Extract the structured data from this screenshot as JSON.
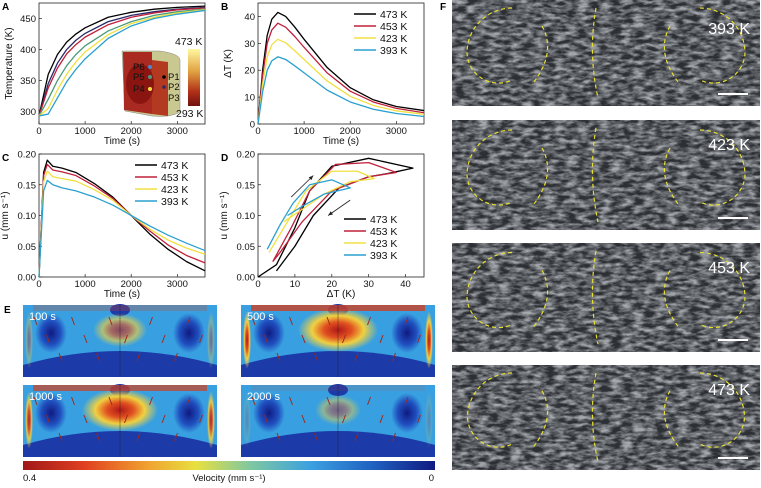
{
  "panels": {
    "A": "A",
    "B": "B",
    "C": "C",
    "D": "D",
    "E": "E",
    "F": "F"
  },
  "chart_data": [
    {
      "id": "A",
      "type": "line",
      "xlabel": "Time (s)",
      "ylabel": "Temperature (K)",
      "xlim": [
        0,
        3600
      ],
      "ylim": [
        280,
        475
      ],
      "xticks": [
        0,
        1000,
        2000,
        3000
      ],
      "yticks": [
        300,
        350,
        400,
        450
      ],
      "x": [
        0,
        200,
        400,
        600,
        800,
        1000,
        1500,
        2000,
        2500,
        3000,
        3600
      ],
      "series": [
        {
          "name": "P1",
          "color": "#000000",
          "values": [
            293,
            360,
            392,
            412,
            425,
            435,
            452,
            460,
            465,
            468,
            470
          ]
        },
        {
          "name": "P2",
          "color": "#2a2a6a",
          "values": [
            293,
            345,
            378,
            400,
            415,
            426,
            445,
            455,
            461,
            465,
            468
          ]
        },
        {
          "name": "P3",
          "color": "#c0203a",
          "values": [
            293,
            338,
            370,
            393,
            408,
            420,
            440,
            452,
            459,
            464,
            467
          ]
        },
        {
          "name": "P4",
          "color": "#4a9a7a",
          "values": [
            293,
            320,
            350,
            374,
            392,
            406,
            430,
            445,
            455,
            461,
            465
          ]
        },
        {
          "name": "P5",
          "color": "#f0e040",
          "values": [
            293,
            305,
            335,
            360,
            380,
            396,
            424,
            442,
            452,
            459,
            464
          ]
        },
        {
          "name": "P6",
          "color": "#2aa0d0",
          "values": [
            293,
            296,
            322,
            348,
            368,
            385,
            418,
            438,
            450,
            457,
            463
          ]
        }
      ],
      "inset": {
        "points": [
          "P6",
          "P5",
          "P4",
          "P1",
          "P2",
          "P3"
        ],
        "colorbar_max": "473 K",
        "colorbar_min": "293 K"
      }
    },
    {
      "id": "B",
      "type": "line",
      "xlabel": "Time (s)",
      "ylabel": "ΔT (K)",
      "xlim": [
        0,
        3600
      ],
      "ylim": [
        0,
        45
      ],
      "xticks": [
        0,
        1000,
        2000,
        3000
      ],
      "yticks": [
        0,
        10,
        20,
        30,
        40
      ],
      "x": [
        0,
        100,
        200,
        300,
        430,
        600,
        800,
        1000,
        1500,
        2000,
        2500,
        3000,
        3600
      ],
      "series": [
        {
          "name": "473 K",
          "color": "#000000",
          "values": [
            0,
            20,
            33,
            39,
            41.5,
            40,
            36,
            31.5,
            21,
            13.5,
            9,
            6.5,
            5
          ]
        },
        {
          "name": "453 K",
          "color": "#c0203a",
          "values": [
            0,
            18,
            30,
            35,
            37.5,
            36,
            32.5,
            28.5,
            19,
            12.2,
            8.2,
            5.8,
            4.2
          ]
        },
        {
          "name": "423 K",
          "color": "#f0e040",
          "values": [
            0,
            15,
            25,
            29.5,
            31.5,
            30.2,
            27.2,
            24,
            16,
            10.3,
            6.9,
            4.9,
            3.6
          ]
        },
        {
          "name": "393 K",
          "color": "#2aa0d0",
          "values": [
            0,
            12,
            20,
            23.5,
            25,
            24,
            21.6,
            19,
            12.6,
            8.2,
            5.5,
            3.9,
            2.8
          ]
        }
      ],
      "legend": "top-right"
    },
    {
      "id": "C",
      "type": "line",
      "xlabel": "Time (s)",
      "ylabel": "u (mm s⁻¹)",
      "xlim": [
        0,
        3600
      ],
      "ylim": [
        0,
        0.2
      ],
      "xticks": [
        0,
        1000,
        2000,
        3000
      ],
      "yticks": [
        0,
        0.05,
        0.1,
        0.15,
        0.2
      ],
      "ytick_labels": [
        "0.00",
        "0.05",
        "0.10",
        "0.15",
        "0.20"
      ],
      "x": [
        0,
        100,
        180,
        300,
        500,
        800,
        1200,
        1600,
        2000,
        2400,
        2800,
        3200,
        3600
      ],
      "series": [
        {
          "name": "473 K",
          "color": "#000000",
          "values": [
            0,
            0.17,
            0.19,
            0.18,
            0.177,
            0.17,
            0.152,
            0.13,
            0.1,
            0.07,
            0.045,
            0.025,
            0.01
          ]
        },
        {
          "name": "453 K",
          "color": "#c0203a",
          "values": [
            0,
            0.165,
            0.183,
            0.174,
            0.171,
            0.165,
            0.148,
            0.128,
            0.1,
            0.075,
            0.052,
            0.035,
            0.023
          ]
        },
        {
          "name": "423 K",
          "color": "#f0e040",
          "values": [
            0,
            0.155,
            0.172,
            0.163,
            0.16,
            0.156,
            0.142,
            0.125,
            0.1,
            0.078,
            0.06,
            0.047,
            0.037
          ]
        },
        {
          "name": "393 K",
          "color": "#2aa0d0",
          "values": [
            0,
            0.14,
            0.157,
            0.15,
            0.145,
            0.14,
            0.13,
            0.117,
            0.1,
            0.083,
            0.068,
            0.055,
            0.043
          ]
        }
      ],
      "legend": "top-right"
    },
    {
      "id": "D",
      "type": "line",
      "xlabel": "ΔT (K)",
      "ylabel": "u (mm s⁻¹)",
      "xlim": [
        0,
        45
      ],
      "ylim": [
        0,
        0.2
      ],
      "xticks": [
        0,
        10,
        20,
        30,
        40
      ],
      "yticks": [
        0,
        0.05,
        0.1,
        0.15,
        0.2
      ],
      "ytick_labels": [
        "0.00",
        "0.05",
        "0.10",
        "0.15",
        "0.20"
      ],
      "series": [
        {
          "name": "473 K",
          "color": "#000000",
          "points": [
            [
              0,
              0
            ],
            [
              5,
              0.02
            ],
            [
              10,
              0.08
            ],
            [
              14,
              0.14
            ],
            [
              20,
              0.18
            ],
            [
              30,
              0.193
            ],
            [
              42,
              0.177
            ],
            [
              35,
              0.168
            ],
            [
              30,
              0.163
            ],
            [
              22,
              0.145
            ],
            [
              15,
              0.1
            ],
            [
              10,
              0.05
            ],
            [
              5,
              0.01
            ]
          ]
        },
        {
          "name": "453 K",
          "color": "#c0203a",
          "points": [
            [
              4,
              0.025
            ],
            [
              9,
              0.08
            ],
            [
              14,
              0.14
            ],
            [
              21,
              0.183
            ],
            [
              30,
              0.186
            ],
            [
              37.5,
              0.17
            ],
            [
              30,
              0.163
            ],
            [
              20,
              0.14
            ],
            [
              12,
              0.09
            ],
            [
              6,
              0.04
            ],
            [
              4,
              0.025
            ]
          ]
        },
        {
          "name": "423 K",
          "color": "#f0e040",
          "points": [
            [
              3,
              0.04
            ],
            [
              8,
              0.09
            ],
            [
              13,
              0.14
            ],
            [
              20,
              0.172
            ],
            [
              27,
              0.172
            ],
            [
              31.5,
              0.16
            ],
            [
              25,
              0.155
            ],
            [
              18,
              0.135
            ],
            [
              12,
              0.11
            ],
            [
              7,
              0.09
            ]
          ]
        },
        {
          "name": "393 K",
          "color": "#2aa0d0",
          "points": [
            [
              2.5,
              0.045
            ],
            [
              6,
              0.085
            ],
            [
              9.5,
              0.12
            ],
            [
              14,
              0.15
            ],
            [
              20,
              0.158
            ],
            [
              25,
              0.145
            ],
            [
              18,
              0.135
            ],
            [
              12,
              0.115
            ],
            [
              8,
              0.1
            ]
          ]
        }
      ],
      "arrows": [
        {
          "from": [
            9,
            0.13
          ],
          "to": [
            15,
            0.165
          ]
        },
        {
          "from": [
            25,
            0.125
          ],
          "to": [
            19,
            0.1
          ]
        }
      ],
      "legend": "bottom-right"
    }
  ],
  "E": {
    "snapshots": [
      {
        "label": "100 s",
        "level": 0.35
      },
      {
        "label": "500 s",
        "level": 1.0
      },
      {
        "label": "1000 s",
        "level": 0.9
      },
      {
        "label": "2000 s",
        "level": 0.15
      }
    ],
    "colorbar": {
      "label": "Velocity (mm s⁻¹)",
      "max": "0.4",
      "min": "0"
    }
  },
  "F": {
    "images": [
      {
        "label": "393 K"
      },
      {
        "label": "423 K"
      },
      {
        "label": "453 K"
      },
      {
        "label": "473 K"
      }
    ]
  }
}
